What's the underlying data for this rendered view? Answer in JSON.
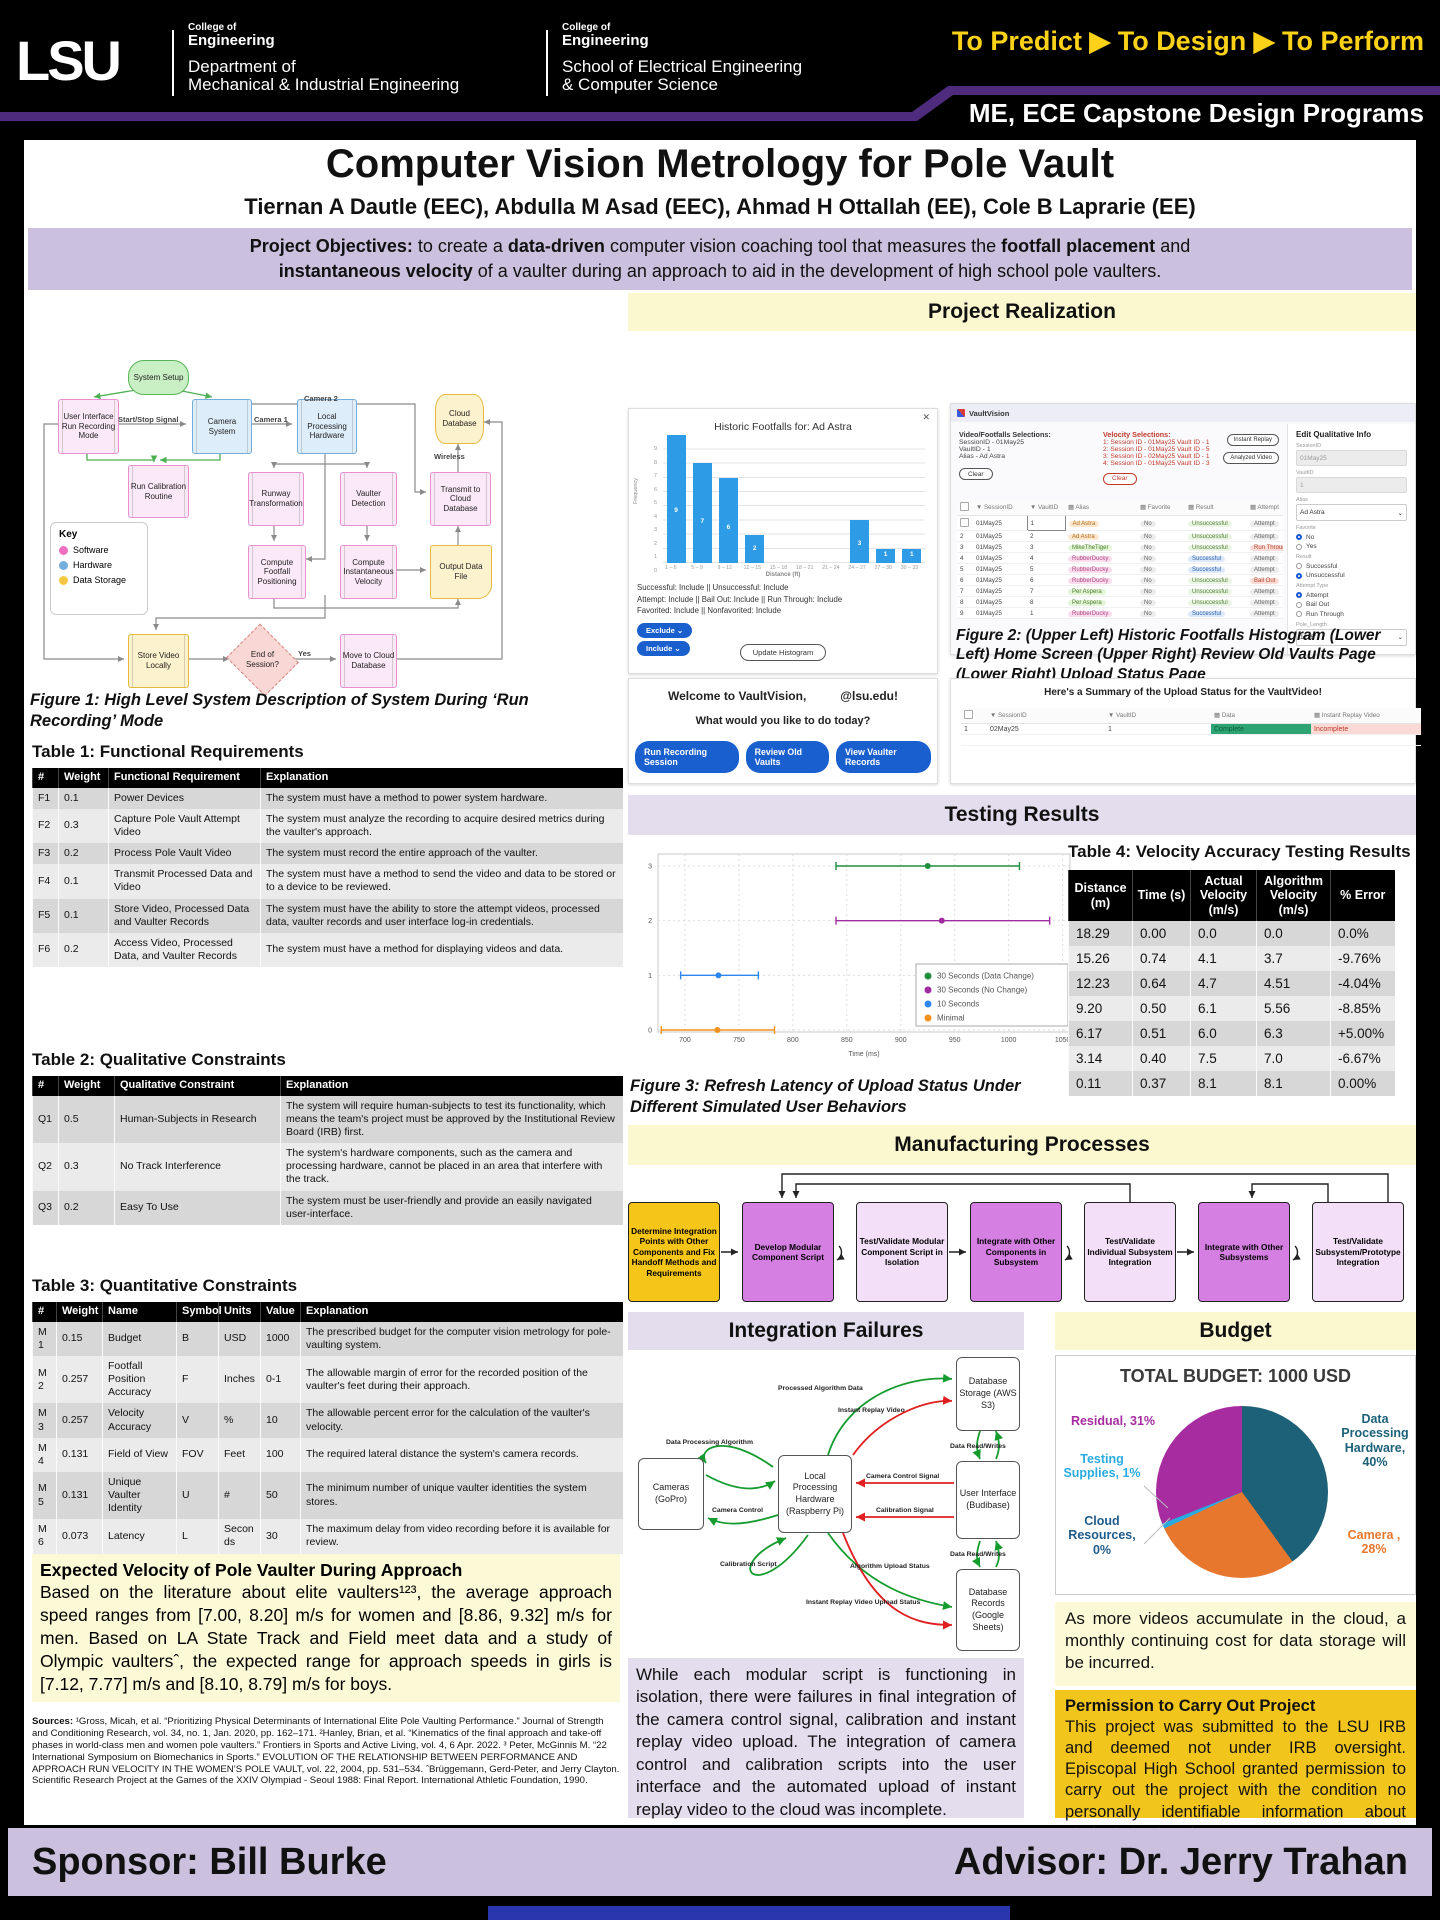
{
  "header": {
    "logo": "LSU",
    "college1": {
      "pre": "College of",
      "name": "Engineering",
      "dept1": "Department of",
      "dept2": "Mechanical & Industrial Engineering"
    },
    "college2": {
      "pre": "College of",
      "name": "Engineering",
      "dept1": "School of Electrical Engineering",
      "dept2": "& Computer Science"
    },
    "tagline": "To Predict ▶ To Design ▶ To Perform",
    "program": "ME, ECE Capstone Design Programs"
  },
  "title": "Computer Vision Metrology for Pole Vault",
  "authors": "Tiernan A Dautle (EEC), Abdulla M Asad (EEC), Ahmad H Ottallah (EE), Cole B Laprarie (EE)",
  "objectives": {
    "l1p1": "Project Objectives:",
    "l1p2": " to create a ",
    "l1p3": "data-driven",
    "l1p4": " computer vision coaching tool that measures the ",
    "l1p5": "footfall placement",
    "l1p6": " and",
    "l2p1": "instantaneous velocity",
    "l2p2": " of a vaulter during an approach to aid in the development of high school pole vaulters."
  },
  "fig1": {
    "caption": "Figure 1: High Level System Description of System During ‘Run Recording’ Mode",
    "key": {
      "title": "Key",
      "software": "Software",
      "hardware": "Hardware",
      "storage": "Data Storage"
    },
    "nodes": {
      "setup": "System Setup",
      "ui": "User Interface Run Recording Mode",
      "cam": "Camera System",
      "lph": "Local Processing Hardware",
      "cloud": "Cloud Database",
      "cal": "Run Calibration Routine",
      "runway": "Runway Transformation",
      "vd": "Vaulter Detection",
      "transmit": "Transmit to Cloud Database",
      "cfp": "Compute Footfall Positioning",
      "civ": "Compute Instantaneous Velocity",
      "odf": "Output Data File",
      "svl": "Store Video Locally",
      "eos": "End of Session?",
      "mcd": "Move to Cloud Database"
    },
    "labels": {
      "startstop": "Start/Stop Signal",
      "cam1": "Camera 1",
      "cam2": "Camera 2",
      "wireless": "Wireless",
      "yes": "Yes"
    }
  },
  "tables": {
    "t1": {
      "title": "Table 1: Functional Requirements",
      "headers": [
        "#",
        "Weight",
        "Functional Requirement",
        "Explanation"
      ],
      "rows": [
        [
          "F1",
          "0.1",
          "Power Devices",
          "The system must have a method to power system hardware."
        ],
        [
          "F2",
          "0.3",
          "Capture Pole Vault Attempt Video",
          "The system must analyze the recording to acquire desired metrics during the vaulter's approach."
        ],
        [
          "F3",
          "0.2",
          "Process Pole Vault Video",
          "The system must record the entire approach of the vaulter."
        ],
        [
          "F4",
          "0.1",
          "Transmit Processed Data and Video",
          "The system must have a method to send the video and data to be stored or to a device to be reviewed."
        ],
        [
          "F5",
          "0.1",
          "Store Video, Processed Data and Vaulter Records",
          "The system must have the ability to store the attempt videos, processed data, vaulter records and user interface log-in credentials."
        ],
        [
          "F6",
          "0.2",
          "Access Video, Processed Data, and Vaulter Records",
          "The system must have a method for displaying videos and data."
        ]
      ]
    },
    "t2": {
      "title": "Table 2: Qualitative Constraints",
      "headers": [
        "#",
        "Weight",
        "Qualitative Constraint",
        "Explanation"
      ],
      "rows": [
        [
          "Q1",
          "0.5",
          "Human-Subjects in Research",
          "The system will require human-subjects to test its functionality, which means the team's project must be approved by the Institutional Review Board (IRB) first."
        ],
        [
          "Q2",
          "0.3",
          "No Track Interference",
          "The system's hardware components, such as the camera and processing hardware, cannot be placed in an area that interfere with the track."
        ],
        [
          "Q3",
          "0.2",
          "Easy To Use",
          "The system must be user-friendly and provide an easily navigated user-interface."
        ]
      ]
    },
    "t3": {
      "title": "Table 3: Quantitative Constraints",
      "headers": [
        "#",
        "Weight",
        "Name",
        "Symbol",
        "Units",
        "Value",
        "Explanation"
      ],
      "rows": [
        [
          "M1",
          "0.15",
          "Budget",
          "B",
          "USD",
          "1000",
          "The prescribed budget for the computer vision metrology for pole-vaulting system."
        ],
        [
          "M2",
          "0.257",
          "Footfall Position Accuracy",
          "F",
          "Inches",
          "0-1",
          "The allowable margin of error for the recorded position of the vaulter's feet during their approach."
        ],
        [
          "M3",
          "0.257",
          "Velocity Accuracy",
          "V",
          "%",
          "10",
          "The allowable percent error for the calculation of the vaulter's velocity."
        ],
        [
          "M4",
          "0.131",
          "Field of View",
          "FOV",
          "Feet",
          "100",
          "The required lateral distance the system's camera records."
        ],
        [
          "M5",
          "0.131",
          "Unique Vaulter Identity",
          "U",
          "#",
          "50",
          "The minimum number of unique vaulter identities the system stores."
        ],
        [
          "M6",
          "0.073",
          "Latency",
          "L",
          "Seconds",
          "30",
          "The maximum delay from video recording before it is available for review."
        ]
      ]
    },
    "t4": {
      "title": "Table 4: Velocity Accuracy Testing Results",
      "headers": [
        "Distance (m)",
        "Time (s)",
        "Actual Velocity (m/s)",
        "Algorithm Velocity (m/s)",
        "% Error"
      ],
      "rows": [
        [
          "18.29",
          "0.00",
          "0.0",
          "0.0",
          "0.0%"
        ],
        [
          "15.26",
          "0.74",
          "4.1",
          "3.7",
          "-9.76%"
        ],
        [
          "12.23",
          "0.64",
          "4.7",
          "4.51",
          "-4.04%"
        ],
        [
          "9.20",
          "0.50",
          "6.1",
          "5.56",
          "-8.85%"
        ],
        [
          "6.17",
          "0.51",
          "6.0",
          "6.3",
          "+5.00%"
        ],
        [
          "3.14",
          "0.40",
          "7.5",
          "7.0",
          "-6.67%"
        ],
        [
          "0.11",
          "0.37",
          "8.1",
          "8.1",
          "0.00%"
        ]
      ]
    }
  },
  "velocity_box": {
    "title": "Expected Velocity of Pole Vaulter During Approach",
    "body": "Based on the literature about elite vaulters¹²³, the average approach speed ranges from [7.00, 8.20] m/s for women and [8.86, 9.32] m/s for men. Based on LA State Track and Field meet data and a study of Olympic vaultersˆ, the expected range for approach speeds in girls is [7.12, 7.77] m/s and [8.10, 8.79] m/s for boys."
  },
  "sources": {
    "label": "Sources:",
    "text": " ¹Gross, Micah, et al. “Prioritizing Physical Determinants of International Elite Pole Vaulting Performance.” Journal of Strength and Conditioning Research, vol. 34, no. 1, Jan. 2020, pp. 162–171. ²Hanley, Brian, et al. “Kinematics of the final approach and take-off phases in world-class men and women pole vaulters.” Frontiers in Sports and Active Living, vol. 4, 6 Apr. 2022. ³ Peter, McGinnis M. “22 International Symposium on Biomechanics in Sports.” EVOLUTION OF THE RELATIONSHIP BETWEEN PERFORMANCE AND APPROACH RUN VELOCITY IN THE WOMEN’S POLE VAULT, vol. 22, 2004, pp. 531–534. ˆBrüggemann, Gerd-Peter, and Jerry Clayton. Scientific Research Project at the Games of the XXIV Olympiad - Seoul 1988: Final Report. International Athletic Foundation, 1990."
  },
  "sections": {
    "realization": "Project Realization",
    "testing": "Testing Results",
    "manufacturing": "Manufacturing Processes",
    "integration": "Integration Failures",
    "budget": "Budget"
  },
  "vaultvision": {
    "histogram": {
      "close": "✕",
      "title": "Historic Footfalls for: Ad Astra",
      "ylabel": "Frequency",
      "xlabel": "Distance (ft)",
      "filters": [
        "Successful: Include || Unsuccessful: Include",
        "Attempt: Include || Bail Out: Include || Run Through: Include",
        "Favorited: Include || Nonfavorited: Include"
      ],
      "exclude": "Exclude ⌄",
      "include": "Include ⌄",
      "update": "Update Histogram"
    },
    "review": {
      "app": "VaultVision",
      "sel_title": "Video/Footfalls Selections:",
      "sel1": "SessionID - 01May25",
      "sel2": "VaultID - 1",
      "sel3": "Alias - Ad Astra",
      "clear": "Clear",
      "vel_title": "Velocity Selections:",
      "vel1": "1: Session ID - 01May25 Vault ID - 1",
      "vel2": "2: Session ID - 01May25 Vault ID - 5",
      "vel3": "3: Session ID - 02May25 Vault ID - 1",
      "vel4": "4: Session ID - 01May25 Vault ID - 3",
      "btn1": "Instant Replay",
      "btn2": "Analyzed Video",
      "headers": [
        "",
        "SessionID",
        "VaultID",
        "Alias",
        "Favorite",
        "Result",
        "Attempt"
      ],
      "rows": [
        [
          "01May25",
          "1",
          "Ad Astra",
          "No",
          "Unsuccessful",
          "Attempt"
        ],
        [
          "01May25",
          "2",
          "Ad Astra",
          "No",
          "Unsuccessful",
          "Attempt"
        ],
        [
          "01May25",
          "3",
          "MikeTheTiger",
          "No",
          "Unsuccessful",
          "Run Through"
        ],
        [
          "01May25",
          "4",
          "RubberDucky",
          "No",
          "Successful",
          "Attempt"
        ],
        [
          "01May25",
          "5",
          "RubberDucky",
          "No",
          "Successful",
          "Attempt"
        ],
        [
          "01May25",
          "6",
          "RubberDucky",
          "No",
          "Unsuccessful",
          "Bail Out"
        ],
        [
          "01May25",
          "7",
          "Per Aspera",
          "No",
          "Unsuccessful",
          "Attempt"
        ],
        [
          "01May25",
          "8",
          "Per Aspera",
          "No",
          "Unsuccessful",
          "Attempt"
        ],
        [
          "01May25",
          "1",
          "RubberDucky",
          "No",
          "Successful",
          "Attempt"
        ]
      ]
    },
    "edit": {
      "title": "Edit Qualitative Info",
      "f1": "SessionID",
      "v1": "01May25",
      "f2": "VaultID",
      "v2": "1",
      "f3": "Alias",
      "v3": "Ad Astra",
      "f4": "Favorite",
      "o41": "No",
      "o42": "Yes",
      "f5": "Result",
      "o51": "Successful",
      "o52": "Unsuccessful",
      "f6": "Attempt Type",
      "o61": "Attempt",
      "o62": "Bail Out",
      "o63": "Run Through",
      "f7": "Pole_Length",
      "v7": "12' 6\""
    },
    "home": {
      "welcome_pre": "Welcome to VaultVision,",
      "welcome_post": "@lsu.edu!",
      "question": "What would you like to do today?",
      "b1": "Run Recording Session",
      "b2": "Review Old Vaults",
      "b3": "View Vaulter Records"
    },
    "upload": {
      "title": "Here's a Summary of the Upload Status for the VaultVideo!",
      "h1": "SessionID",
      "h2": "VaultID",
      "h3": "Data",
      "h4": "Instant Replay Video",
      "r_num": "1",
      "r_session": "02May25",
      "r_vault": "1",
      "r_data": "Complete",
      "r_video": "Incomplete"
    }
  },
  "fig2_caption": "Figure 2: (Upper Left) Historic Footfalls Histogram (Lower Left) Home Screen (Upper Right) Review Old Vaults Page (Lower Right) Upload Status Page",
  "fig3_caption": "Figure 3: Refresh Latency of Upload Status Under Different Simulated User Behaviors",
  "manufacturing": {
    "steps": [
      "Determine Integration Points with Other Components and Fix Handoff Methods and Requirements",
      "Develop Modular Component Script",
      "Test/Validate Modular Component Script in Isolation",
      "Integrate with Other Components in Subsystem",
      "Test/Validate Individual Subsystem Integration",
      "Integrate with Other Subsystems",
      "Test/Validate Subsystem/Prototype Integration"
    ]
  },
  "integration": {
    "nodes": {
      "cameras": "Cameras (GoPro)",
      "lph": "Local Processing Hardware (Raspberry Pi)",
      "aws": "Database Storage (AWS S3)",
      "ui": "User Interface (Budibase)",
      "gs": "Database Records (Google Sheets)"
    },
    "labels": {
      "pad": "Processed Algorithm Data",
      "irv": "Instant Replay Video",
      "dpa": "Data Processing Algorithm",
      "cc": "Camera Control",
      "ccs": "Camera Control Signal",
      "cs": "Calibration Signal",
      "script": "Calibration Script",
      "aus": "Algorithm Upload Status",
      "irvus": "Instant Replay Video Upload Status",
      "drw1": "Data Read/Writes",
      "drw2": "Data Read/Writes"
    },
    "body": "While each modular script is functioning in isolation, there were failures in final integration of the camera control signal, calibration and instant replay video upload. The integration of camera control and calibration scripts into the user interface and the automated upload of instant replay video to the cloud was incomplete."
  },
  "budget": {
    "total": "TOTAL BUDGET: 1000 USD",
    "labels": {
      "residual": "Residual, 31%",
      "testing": "Testing Supplies, 1%",
      "cloud": "Cloud Resources, 0%",
      "dph": "Data Processing Hardware, 40%",
      "camera": "Camera , 28%"
    },
    "note": "As more videos accumulate in the cloud, a monthly continuing cost for data storage will be incurred."
  },
  "permission": {
    "title": "Permission to Carry Out Project",
    "body": "This project was submitted to the LSU IRB and deemed not under IRB oversight. Episcopal High School granted permission to carry out the project with the condition no personally identifiable information about students is stored."
  },
  "footer": {
    "sponsor": "Sponsor: Bill Burke",
    "advisor": "Advisor: Dr. Jerry Trahan"
  },
  "chart_data": [
    {
      "type": "bar",
      "title": "Historic Footfalls for: Ad Astra",
      "xlabel": "Distance (ft)",
      "ylabel": "Frequency",
      "categories": [
        "1 – 5",
        "5 – 9",
        "9 – 12",
        "12 – 15",
        "15 – 18",
        "18 – 21",
        "21 – 24",
        "24 – 27",
        "27 – 30",
        "30 – 33"
      ],
      "values": [
        9,
        7,
        6,
        2,
        0,
        0,
        0,
        3,
        1,
        1
      ],
      "ylim": [
        0,
        9
      ],
      "grid": true
    },
    {
      "type": "scatter",
      "title": "Refresh Latency of Upload Status Under Different Simulated User Behaviors",
      "xlabel": "Time (ms)",
      "xlim": [
        675,
        1055
      ],
      "xticks": [
        700,
        750,
        800,
        850,
        900,
        950,
        1000,
        1050
      ],
      "ylim": [
        0,
        3
      ],
      "legend_position": "lower right",
      "grid": true,
      "series": [
        {
          "name": "Minimal",
          "y": 0,
          "min": 678,
          "center": 730,
          "max": 783,
          "color": "#F5921E"
        },
        {
          "name": "10 Seconds",
          "y": 1,
          "min": 696,
          "center": 731,
          "max": 768,
          "color": "#2E86F0"
        },
        {
          "name": "30 Seconds (No Change)",
          "y": 2,
          "min": 840,
          "center": 938,
          "max": 1038,
          "color": "#A12CA1"
        },
        {
          "name": "30 Seconds (Data Change)",
          "y": 3,
          "min": 840,
          "center": 925,
          "max": 1010,
          "color": "#1E8F3C"
        }
      ]
    },
    {
      "type": "pie",
      "title": "TOTAL BUDGET: 1000 USD",
      "slices": [
        {
          "label": "Data Processing Hardware",
          "value": 40,
          "color": "#1C6178"
        },
        {
          "label": "Camera",
          "value": 28,
          "color": "#E8772E"
        },
        {
          "label": "Cloud Resources",
          "value": 0,
          "color": "#1F4E79"
        },
        {
          "label": "Testing Supplies",
          "value": 1,
          "color": "#29ABE2"
        },
        {
          "label": "Residual",
          "value": 31,
          "color": "#A62CA0"
        }
      ]
    }
  ]
}
